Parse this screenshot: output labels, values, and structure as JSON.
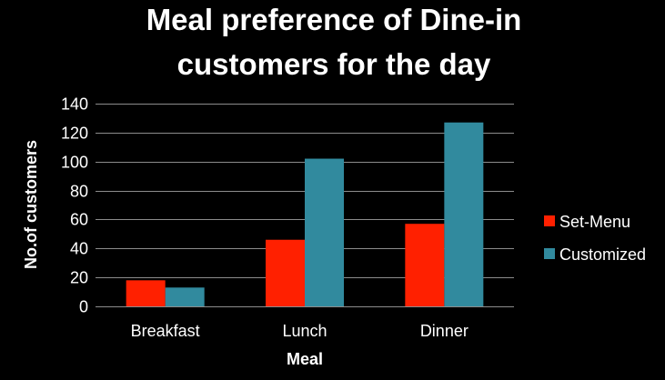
{
  "chart_data": {
    "type": "bar",
    "title_lines": [
      "Meal preference of Dine-in",
      "customers for the day"
    ],
    "xlabel": "Meal",
    "ylabel": "No.of customers",
    "categories": [
      "Breakfast",
      "Lunch",
      "Dinner"
    ],
    "series": [
      {
        "name": "Set-Menu",
        "values": [
          18,
          46,
          57
        ],
        "color": "#ff2000"
      },
      {
        "name": "Customized",
        "values": [
          13,
          102,
          127
        ],
        "color": "#318a9e"
      }
    ],
    "ylim": [
      0,
      140
    ],
    "yticks": [
      0,
      20,
      40,
      60,
      80,
      100,
      120,
      140
    ],
    "grid": true,
    "legend_position": "right"
  },
  "colors": {
    "background": "#000000",
    "text": "#ffffff",
    "grid": "#8c8c8c"
  }
}
